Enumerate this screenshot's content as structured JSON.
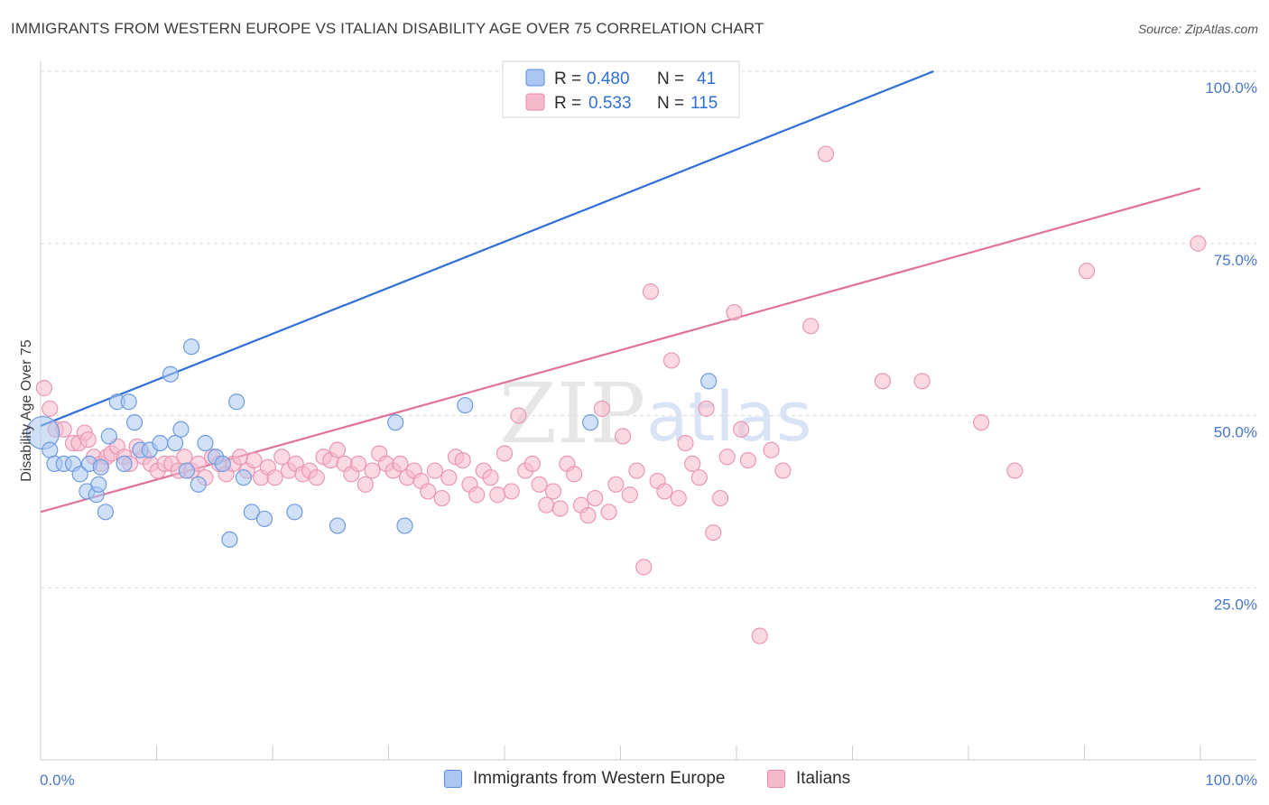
{
  "header": {
    "title": "IMMIGRANTS FROM WESTERN EUROPE VS ITALIAN DISABILITY AGE OVER 75 CORRELATION CHART",
    "source": "Source: ZipAtlas.com"
  },
  "watermark": {
    "zip": "ZIP",
    "atlas": "atlas"
  },
  "colors": {
    "blue": "#2f6fd6",
    "blue_fill": "#aac6f0",
    "pink": "#e2719a",
    "pink_fill": "#f6b9cc",
    "grid": "#dddddd",
    "tick_text": "#4a78c8"
  },
  "legend": {
    "r_label": "R =",
    "n_label": "N =",
    "series": [
      {
        "r": "0.480",
        "n": "41"
      },
      {
        "r": "0.533",
        "n": "115"
      }
    ]
  },
  "chart_data": {
    "type": "scatter",
    "title": "IMMIGRANTS FROM WESTERN EUROPE VS ITALIAN DISABILITY AGE OVER 75 CORRELATION CHART",
    "xlabel": "",
    "ylabel": "Disability Age Over 75",
    "xlim": [
      0,
      100
    ],
    "ylim": [
      0,
      103
    ],
    "x_tick_labels": [
      "0.0%",
      "100.0%"
    ],
    "y_ticks": [
      25,
      50,
      75,
      100
    ],
    "y_tick_labels": [
      "25.0%",
      "50.0%",
      "75.0%",
      "100.0%"
    ],
    "grid": true,
    "legend_position": "top-center",
    "series": [
      {
        "name": "Immigrants from Western Europe",
        "color": "#2f6fd6",
        "r": 0.48,
        "n": 41,
        "trend": [
          [
            0,
            48.5
          ],
          [
            77,
            100
          ]
        ],
        "points": [
          [
            0.2,
            47.5
          ],
          [
            0.8,
            45
          ],
          [
            1.2,
            43
          ],
          [
            2,
            43
          ],
          [
            2.8,
            43
          ],
          [
            3.4,
            41.5
          ],
          [
            4,
            39
          ],
          [
            4.2,
            43
          ],
          [
            4.8,
            38.5
          ],
          [
            5.0,
            40
          ],
          [
            5.2,
            42.5
          ],
          [
            5.6,
            36
          ],
          [
            5.9,
            47
          ],
          [
            6.6,
            52
          ],
          [
            7.2,
            43
          ],
          [
            7.6,
            52
          ],
          [
            8.1,
            49
          ],
          [
            8.6,
            45
          ],
          [
            9.4,
            45
          ],
          [
            10.3,
            46
          ],
          [
            11.2,
            56
          ],
          [
            11.6,
            46
          ],
          [
            12.1,
            48
          ],
          [
            12.6,
            42
          ],
          [
            13.0,
            60
          ],
          [
            13.6,
            40
          ],
          [
            14.2,
            46
          ],
          [
            15.1,
            44
          ],
          [
            15.7,
            43
          ],
          [
            16.3,
            32
          ],
          [
            16.9,
            52
          ],
          [
            17.5,
            41
          ],
          [
            18.2,
            36
          ],
          [
            19.3,
            35
          ],
          [
            21.9,
            36
          ],
          [
            25.6,
            34
          ],
          [
            30.6,
            49
          ],
          [
            31.4,
            34
          ],
          [
            36.6,
            51.5
          ],
          [
            47.4,
            49
          ],
          [
            57.6,
            55
          ]
        ]
      },
      {
        "name": "Italians",
        "color": "#e2719a",
        "r": 0.533,
        "n": 115,
        "trend": [
          [
            0,
            36
          ],
          [
            100,
            83
          ]
        ],
        "points": [
          [
            0.3,
            54
          ],
          [
            0.8,
            51
          ],
          [
            1.3,
            48
          ],
          [
            2,
            48
          ],
          [
            2.8,
            46
          ],
          [
            3.3,
            46
          ],
          [
            3.8,
            47.5
          ],
          [
            4.1,
            46.5
          ],
          [
            4.6,
            44
          ],
          [
            5.2,
            43
          ],
          [
            5.7,
            44
          ],
          [
            6.1,
            44.5
          ],
          [
            6.6,
            45.5
          ],
          [
            7.2,
            44
          ],
          [
            7.7,
            43
          ],
          [
            8.3,
            45.5
          ],
          [
            8.9,
            44
          ],
          [
            9.5,
            43
          ],
          [
            10.1,
            42
          ],
          [
            10.7,
            43
          ],
          [
            11.3,
            43
          ],
          [
            11.9,
            42
          ],
          [
            12.4,
            44
          ],
          [
            13.0,
            42
          ],
          [
            13.6,
            43
          ],
          [
            14.2,
            41
          ],
          [
            14.8,
            44
          ],
          [
            15.4,
            43
          ],
          [
            16.0,
            41.5
          ],
          [
            16.6,
            43
          ],
          [
            17.2,
            44
          ],
          [
            17.8,
            42
          ],
          [
            18.4,
            43.5
          ],
          [
            19.0,
            41
          ],
          [
            19.6,
            42.5
          ],
          [
            20.2,
            41
          ],
          [
            20.8,
            44
          ],
          [
            21.4,
            42
          ],
          [
            22.0,
            43
          ],
          [
            22.6,
            41.5
          ],
          [
            23.2,
            42
          ],
          [
            23.8,
            41
          ],
          [
            24.4,
            44
          ],
          [
            25.0,
            43.5
          ],
          [
            25.6,
            45
          ],
          [
            26.2,
            43
          ],
          [
            26.8,
            41.5
          ],
          [
            27.4,
            43
          ],
          [
            28.0,
            40
          ],
          [
            28.6,
            42
          ],
          [
            29.2,
            44.5
          ],
          [
            29.8,
            43
          ],
          [
            30.4,
            42
          ],
          [
            31.0,
            43
          ],
          [
            31.6,
            41
          ],
          [
            32.2,
            42
          ],
          [
            32.8,
            40.5
          ],
          [
            33.4,
            39
          ],
          [
            34.0,
            42
          ],
          [
            34.6,
            38
          ],
          [
            35.2,
            41
          ],
          [
            35.8,
            44
          ],
          [
            36.4,
            43.5
          ],
          [
            37.0,
            40
          ],
          [
            37.6,
            38.5
          ],
          [
            38.2,
            42
          ],
          [
            38.8,
            41
          ],
          [
            39.4,
            38.5
          ],
          [
            40.0,
            44.5
          ],
          [
            40.6,
            39
          ],
          [
            41.2,
            50
          ],
          [
            41.8,
            42
          ],
          [
            42.4,
            43
          ],
          [
            43.0,
            40
          ],
          [
            43.6,
            37
          ],
          [
            44.2,
            39
          ],
          [
            44.8,
            36.5
          ],
          [
            45.4,
            43
          ],
          [
            46.0,
            41.5
          ],
          [
            46.6,
            37
          ],
          [
            47.2,
            35.5
          ],
          [
            47.8,
            38
          ],
          [
            48.4,
            51
          ],
          [
            49.0,
            36
          ],
          [
            49.6,
            40
          ],
          [
            50.2,
            47
          ],
          [
            50.8,
            38.5
          ],
          [
            51.4,
            42
          ],
          [
            52.0,
            28
          ],
          [
            52.6,
            68
          ],
          [
            53.2,
            40.5
          ],
          [
            53.8,
            39
          ],
          [
            54.4,
            58
          ],
          [
            55.0,
            38
          ],
          [
            55.6,
            46
          ],
          [
            56.2,
            43
          ],
          [
            56.8,
            41
          ],
          [
            57.4,
            51
          ],
          [
            58.0,
            33
          ],
          [
            58.6,
            38
          ],
          [
            59.2,
            44
          ],
          [
            59.8,
            65
          ],
          [
            60.4,
            48
          ],
          [
            61.0,
            43.5
          ],
          [
            62.0,
            18
          ],
          [
            63.0,
            45
          ],
          [
            64.0,
            42
          ],
          [
            66.4,
            63
          ],
          [
            67.7,
            88
          ],
          [
            72.6,
            55
          ],
          [
            76.0,
            55
          ],
          [
            81.1,
            49
          ],
          [
            84.0,
            42
          ],
          [
            90.2,
            71
          ],
          [
            99.8,
            75
          ]
        ]
      }
    ]
  }
}
